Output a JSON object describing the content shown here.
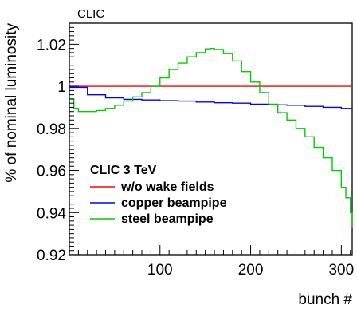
{
  "chart_data": {
    "type": "line",
    "top_label": "CLIC",
    "xlabel": "bunch #",
    "ylabel": "% of nominal luminosity",
    "xlim": [
      0,
      312
    ],
    "ylim": [
      0.92,
      1.03
    ],
    "x_ticks": [
      100,
      200,
      300
    ],
    "y_ticks": [
      0.92,
      0.94,
      0.96,
      0.98,
      1,
      1.02
    ],
    "x_tick_labels": [
      "100",
      "200",
      "300"
    ],
    "y_tick_labels": [
      "0.92",
      "0.94",
      "0.96",
      "0.98",
      "1",
      "1.02"
    ],
    "grid": false,
    "legend": {
      "placement": "bottom-left",
      "title": "CLIC 3 TeV"
    },
    "series": [
      {
        "name": "w/o wake fields",
        "color": "#ff0000",
        "x": [
          0,
          20,
          40,
          60,
          80,
          100,
          120,
          140,
          160,
          180,
          200,
          220,
          240,
          260,
          280,
          300,
          312
        ],
        "y": [
          1.0,
          1.0,
          1.0,
          1.0,
          1.0,
          1.0,
          1.0,
          1.0,
          1.0,
          1.0,
          1.0,
          1.0,
          1.0,
          1.0,
          1.0,
          1.0,
          1.0
        ]
      },
      {
        "name": "copper beampipe",
        "color": "#0000ff",
        "x": [
          0,
          20,
          40,
          60,
          80,
          100,
          120,
          140,
          160,
          180,
          200,
          220,
          240,
          260,
          280,
          300,
          312
        ],
        "y": [
          0.9995,
          0.996,
          0.9945,
          0.9938,
          0.9935,
          0.9932,
          0.993,
          0.9925,
          0.9922,
          0.992,
          0.9915,
          0.9912,
          0.991,
          0.9905,
          0.99,
          0.9895,
          0.989
        ]
      },
      {
        "name": "steel beampipe",
        "color": "#00cc00",
        "x": [
          0,
          5,
          10,
          20,
          30,
          40,
          50,
          60,
          70,
          80,
          90,
          100,
          110,
          120,
          130,
          140,
          150,
          155,
          160,
          170,
          180,
          190,
          200,
          210,
          220,
          230,
          240,
          250,
          260,
          270,
          280,
          290,
          300,
          305,
          310,
          312
        ],
        "y": [
          0.994,
          0.9895,
          0.988,
          0.988,
          0.9885,
          0.9895,
          0.991,
          0.993,
          0.995,
          0.997,
          1.0,
          1.004,
          1.008,
          1.011,
          1.014,
          1.016,
          1.0178,
          1.018,
          1.0175,
          1.0155,
          1.012,
          1.007,
          1.002,
          0.997,
          0.9915,
          0.9875,
          0.984,
          0.98,
          0.976,
          0.971,
          0.966,
          0.96,
          0.952,
          0.947,
          0.94,
          0.933
        ]
      }
    ]
  }
}
